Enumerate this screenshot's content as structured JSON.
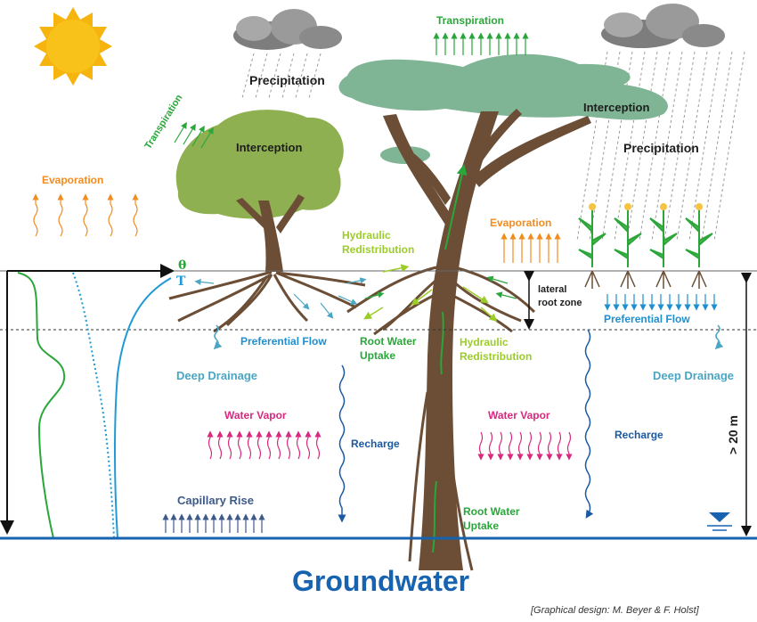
{
  "labels": {
    "transpiration_left": "Transpiration",
    "transpiration_top": "Transpiration",
    "precipitation_left": "Precipitation",
    "precipitation_right": "Precipitation",
    "interception_left": "Interception",
    "interception_right": "Interception",
    "evaporation_left": "Evaporation",
    "evaporation_right": "Evaporation",
    "hydraulic_redistribution_top_line1": "Hydraulic",
    "hydraulic_redistribution_top_line2": "Redistribution",
    "hydraulic_redistribution_bottom_line1": "Hydraulic",
    "hydraulic_redistribution_bottom_line2": "Redistribution",
    "lateral_root_zone_line1": "lateral",
    "lateral_root_zone_line2": "root zone",
    "preferential_flow_left": "Preferential Flow",
    "preferential_flow_right": "Preferential Flow",
    "root_water_uptake_top_line1": "Root Water",
    "root_water_uptake_top_line2": "Uptake",
    "root_water_uptake_bottom_line1": "Root Water",
    "root_water_uptake_bottom_line2": "Uptake",
    "deep_drainage_left": "Deep Drainage",
    "deep_drainage_right": "Deep Drainage",
    "water_vapor_left": "Water Vapor",
    "water_vapor_right": "Water Vapor",
    "recharge_left": "Recharge",
    "recharge_right": "Recharge",
    "capillary_rise": "Capillary Rise",
    "depth": "> 20 m",
    "theta_symbol": "θ",
    "temperature_symbol": "T",
    "groundwater": "Groundwater",
    "credit": "[Graphical design: M. Beyer & F. Holst]"
  },
  "colors": {
    "sun": "#f6b40e",
    "cloud": "#8c8c8c",
    "tree_left_canopy": "#8fb050",
    "tree_right_canopy": "#7fb494",
    "trunk": "#6b4e35",
    "groundwater_line": "#1763b0",
    "theta_profile": "#2aa63a",
    "temperature_profile": "#1f9ad6"
  },
  "icons": [
    "sun-icon",
    "cloud-icon",
    "tree-icon",
    "corn-plant-icon",
    "water-table-icon"
  ]
}
